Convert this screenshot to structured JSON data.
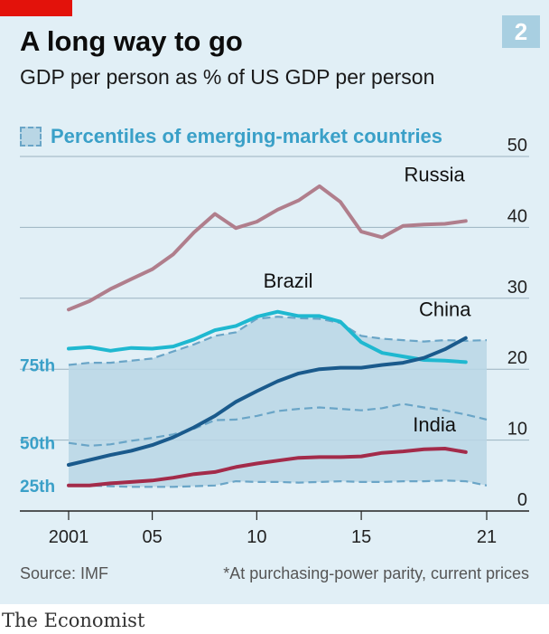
{
  "header": {
    "chart_number": "2",
    "brand_color": "#e3120b"
  },
  "legend": {
    "label": "Percentiles of emerging-market countries"
  },
  "footer": {
    "source": "Source: IMF",
    "note": "*At purchasing-power parity, current prices",
    "brand": "The Economist"
  },
  "chart_data": {
    "type": "line",
    "title": "A long way to go",
    "subtitle": "GDP per person as % of US GDP per person",
    "ylim": [
      0,
      50
    ],
    "xlim": [
      2001,
      2021
    ],
    "y_ticks": [
      0,
      10,
      20,
      30,
      40,
      50
    ],
    "x_ticks": [
      {
        "value": 2001,
        "label": "2001"
      },
      {
        "value": 2005,
        "label": "05"
      },
      {
        "value": 2010,
        "label": "10"
      },
      {
        "value": 2015,
        "label": "15"
      },
      {
        "value": 2021,
        "label": "21"
      }
    ],
    "grid": true,
    "y_axis_side": "right",
    "x": [
      2001,
      2002,
      2003,
      2004,
      2005,
      2006,
      2007,
      2008,
      2009,
      2010,
      2011,
      2012,
      2013,
      2014,
      2015,
      2016,
      2017,
      2018,
      2019,
      2020,
      2021
    ],
    "percentile_band": {
      "colors": {
        "fill": "#b9d6e5",
        "line": "#6aa5c7"
      },
      "series": [
        {
          "name": "75th",
          "values": [
            20.6,
            20.9,
            20.9,
            21.2,
            21.5,
            22.5,
            23.5,
            24.7,
            25.2,
            27.1,
            27.4,
            27.2,
            27.1,
            26.5,
            24.7,
            24.3,
            24.1,
            23.9,
            24.1,
            24.0,
            24.1
          ]
        },
        {
          "name": "50th",
          "values": [
            9.6,
            9.2,
            9.4,
            9.9,
            10.3,
            10.8,
            11.6,
            12.8,
            12.9,
            13.4,
            14.1,
            14.4,
            14.6,
            14.4,
            14.2,
            14.5,
            15.1,
            14.6,
            14.2,
            13.6,
            12.9
          ]
        },
        {
          "name": "25th",
          "values": [
            3.6,
            3.6,
            3.5,
            3.4,
            3.4,
            3.4,
            3.5,
            3.6,
            4.2,
            4.1,
            4.1,
            4.0,
            4.1,
            4.2,
            4.1,
            4.1,
            4.2,
            4.2,
            4.3,
            4.2,
            3.6
          ]
        }
      ]
    },
    "series": [
      {
        "name": "Russia",
        "color": "#b07e8c",
        "values": [
          28.4,
          29.6,
          31.3,
          32.7,
          34.1,
          36.2,
          39.3,
          41.9,
          39.9,
          40.8,
          42.5,
          43.8,
          45.8,
          43.6,
          39.4,
          38.6,
          40.2,
          40.4,
          40.5,
          40.9,
          null
        ]
      },
      {
        "name": "Brazil",
        "color": "#1fb8d0",
        "values": [
          22.9,
          23.1,
          22.6,
          23.0,
          22.9,
          23.2,
          24.2,
          25.5,
          26.1,
          27.4,
          28.1,
          27.5,
          27.5,
          26.7,
          23.8,
          22.3,
          21.8,
          21.3,
          21.2,
          21.0,
          null
        ]
      },
      {
        "name": "China",
        "color": "#1a5a8c",
        "values": [
          6.5,
          7.2,
          7.9,
          8.5,
          9.3,
          10.4,
          11.8,
          13.4,
          15.4,
          16.9,
          18.3,
          19.4,
          20.0,
          20.2,
          20.2,
          20.6,
          20.9,
          21.6,
          22.8,
          24.4,
          null
        ]
      },
      {
        "name": "India",
        "color": "#a32b4a",
        "values": [
          3.6,
          3.6,
          3.9,
          4.1,
          4.3,
          4.7,
          5.2,
          5.5,
          6.2,
          6.7,
          7.1,
          7.5,
          7.6,
          7.6,
          7.7,
          8.2,
          8.4,
          8.7,
          8.8,
          8.3,
          null
        ]
      }
    ]
  }
}
